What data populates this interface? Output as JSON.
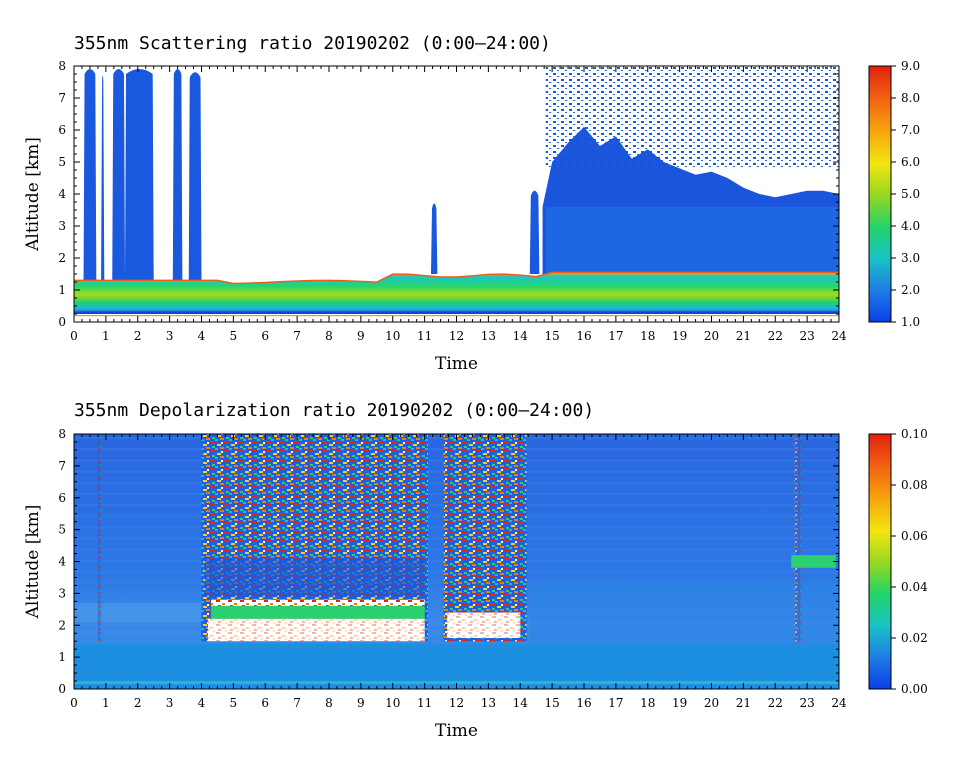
{
  "chart_data": [
    {
      "type": "heatmap",
      "title": "355nm Scattering ratio  20190202 (0:00–24:00)",
      "xlabel": "Time",
      "ylabel": "Altitude [km]",
      "xlim": [
        0,
        24
      ],
      "ylim": [
        0,
        8
      ],
      "x_ticks": [
        "0",
        "1",
        "2",
        "3",
        "4",
        "5",
        "6",
        "7",
        "8",
        "9",
        "10",
        "11",
        "12",
        "13",
        "14",
        "15",
        "16",
        "17",
        "18",
        "19",
        "20",
        "21",
        "22",
        "23",
        "24"
      ],
      "y_ticks": [
        "0",
        "1",
        "2",
        "3",
        "4",
        "5",
        "6",
        "7",
        "8"
      ],
      "colorbar": {
        "min": 1.0,
        "max": 9.0,
        "ticks": [
          "1.0",
          "2.0",
          "3.0",
          "4.0",
          "5.0",
          "6.0",
          "7.0",
          "8.0",
          "9.0"
        ]
      },
      "features": [
        {
          "name": "boundary layer",
          "x": [
            0,
            24
          ],
          "y": [
            0.3,
            1.3
          ],
          "value": 4.5
        },
        {
          "name": "cloud column",
          "x": [
            0.3,
            0.7
          ],
          "y": [
            1.3,
            8.0
          ],
          "value": 1.6
        },
        {
          "name": "cloud column",
          "x": [
            0.85,
            0.95
          ],
          "y": [
            1.3,
            7.8
          ],
          "value": 1.6
        },
        {
          "name": "cloud column",
          "x": [
            1.2,
            1.6
          ],
          "y": [
            1.3,
            8.0
          ],
          "value": 1.6
        },
        {
          "name": "cloud column",
          "x": [
            1.6,
            2.5
          ],
          "y": [
            1.3,
            8.0
          ],
          "value": 1.7
        },
        {
          "name": "cloud column",
          "x": [
            3.1,
            3.4
          ],
          "y": [
            1.3,
            8.0
          ],
          "value": 1.6
        },
        {
          "name": "cloud column",
          "x": [
            3.6,
            4.0
          ],
          "y": [
            1.3,
            7.9
          ],
          "value": 1.6
        },
        {
          "name": "cloud column",
          "x": [
            11.2,
            11.4
          ],
          "y": [
            1.5,
            3.8
          ],
          "value": 1.6
        },
        {
          "name": "cloud column",
          "x": [
            14.3,
            14.6
          ],
          "y": [
            1.5,
            4.2
          ],
          "value": 1.6
        },
        {
          "name": "cloud mass",
          "x": [
            14.8,
            24.0
          ],
          "y": [
            1.5,
            4.8
          ],
          "value": 1.7
        }
      ]
    },
    {
      "type": "heatmap",
      "title": "355nm Depolarization ratio  20190202 (0:00–24:00)",
      "xlabel": "Time",
      "ylabel": "Altitude [km]",
      "xlim": [
        0,
        24
      ],
      "ylim": [
        0,
        8
      ],
      "x_ticks": [
        "0",
        "1",
        "2",
        "3",
        "4",
        "5",
        "6",
        "7",
        "8",
        "9",
        "10",
        "11",
        "12",
        "13",
        "14",
        "15",
        "16",
        "17",
        "18",
        "19",
        "20",
        "21",
        "22",
        "23",
        "24"
      ],
      "y_ticks": [
        "0",
        "1",
        "2",
        "3",
        "4",
        "5",
        "6",
        "7",
        "8"
      ],
      "colorbar": {
        "min": 0.0,
        "max": 0.1,
        "ticks": [
          "0.00",
          "0.02",
          "0.04",
          "0.06",
          "0.08",
          "0.10"
        ]
      },
      "features": [
        {
          "name": "background",
          "x": [
            0,
            24
          ],
          "y": [
            0,
            8
          ],
          "value": 0.015
        },
        {
          "name": "high depolarization",
          "x": [
            4.0,
            11.1
          ],
          "y": [
            1.5,
            8.0
          ],
          "value": 0.09
        },
        {
          "name": "high depolarization",
          "x": [
            11.6,
            14.2
          ],
          "y": [
            1.5,
            8.0
          ],
          "value": 0.09
        },
        {
          "name": "moderate depolarization",
          "x": [
            4.3,
            11.0
          ],
          "y": [
            2.2,
            2.8
          ],
          "value": 0.05
        },
        {
          "name": "saturated",
          "x": [
            4.2,
            11.0
          ],
          "y": [
            1.5,
            2.2
          ],
          "value": 0.12
        },
        {
          "name": "saturated",
          "x": [
            11.7,
            14.0
          ],
          "y": [
            1.6,
            2.4
          ],
          "value": 0.12
        },
        {
          "name": "local maximum",
          "x": [
            22.5,
            23.0
          ],
          "y": [
            3.8,
            4.2
          ],
          "value": 0.045
        }
      ]
    }
  ]
}
